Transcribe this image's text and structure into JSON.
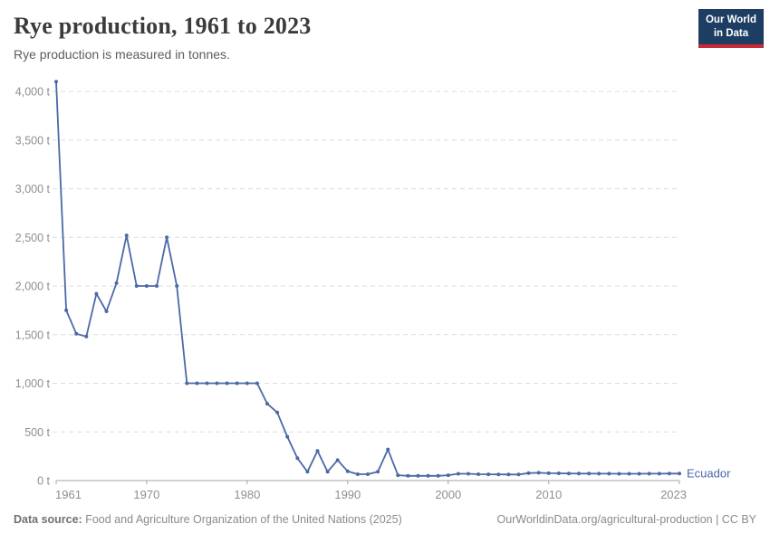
{
  "header": {
    "title": "Rye production, 1961 to 2023",
    "subtitle": "Rye production is measured in tonnes.",
    "logo": {
      "line1": "Our World",
      "line2": "in Data"
    }
  },
  "footer": {
    "datasource_label": "Data source:",
    "datasource_text": "Food and Agriculture Organization of the United Nations (2025)",
    "right_text": "OurWorldinData.org/agricultural-production | CC BY"
  },
  "colors": {
    "series_blue": "#4b69a7",
    "gridline": "#dcdcdc",
    "axis_line": "#a3a3a3",
    "axis_text": "#8f8f8f",
    "logo_navy": "#1d3d63",
    "logo_red": "#c72b38"
  },
  "chart_data": {
    "type": "line",
    "title": "Rye production, 1961 to 2023",
    "unit": "t",
    "xlabel": "",
    "ylabel": "",
    "grid": "horizontal-dashed",
    "legend_position": "end-of-line",
    "ylim": [
      0,
      4100
    ],
    "yticks": [
      0,
      500,
      1000,
      1500,
      2000,
      2500,
      3000,
      3500,
      4000
    ],
    "xticks": [
      1961,
      1970,
      1980,
      1990,
      2000,
      2010,
      2023
    ],
    "x": [
      1961,
      1962,
      1963,
      1964,
      1965,
      1966,
      1967,
      1968,
      1969,
      1970,
      1971,
      1972,
      1973,
      1974,
      1975,
      1976,
      1977,
      1978,
      1979,
      1980,
      1981,
      1982,
      1983,
      1984,
      1985,
      1986,
      1987,
      1988,
      1989,
      1990,
      1991,
      1992,
      1993,
      1994,
      1995,
      1996,
      1997,
      1998,
      1999,
      2000,
      2001,
      2002,
      2003,
      2004,
      2005,
      2006,
      2007,
      2008,
      2009,
      2010,
      2011,
      2012,
      2013,
      2014,
      2015,
      2016,
      2017,
      2018,
      2019,
      2020,
      2021,
      2022,
      2023
    ],
    "series": [
      {
        "name": "Ecuador",
        "color": "#4b69a7",
        "values": [
          4100,
          1750,
          1510,
          1480,
          1920,
          1740,
          2030,
          2520,
          2000,
          2000,
          2000,
          2500,
          2000,
          1000,
          1000,
          1000,
          1000,
          1000,
          1000,
          1000,
          1000,
          790,
          700,
          450,
          230,
          90,
          305,
          90,
          210,
          95,
          65,
          65,
          90,
          320,
          55,
          48,
          48,
          48,
          48,
          55,
          70,
          70,
          65,
          64,
          63,
          62,
          62,
          76,
          80,
          75,
          74,
          73,
          72,
          72,
          71,
          71,
          70,
          70,
          70,
          71,
          71,
          72,
          72
        ]
      }
    ]
  }
}
